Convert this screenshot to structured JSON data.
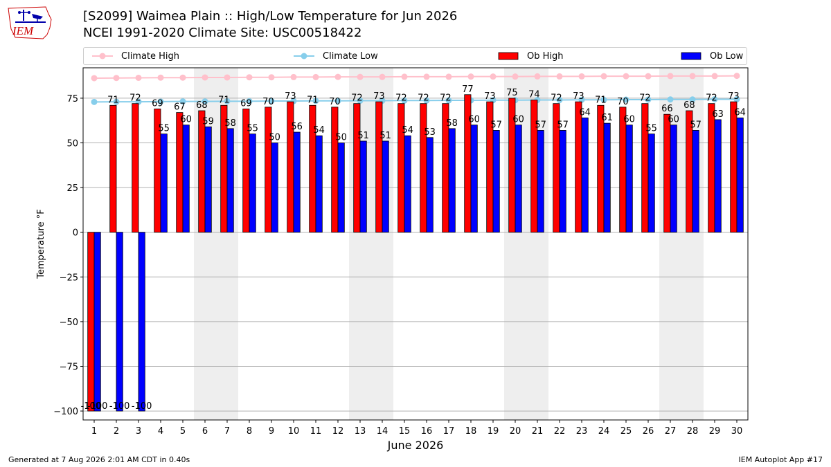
{
  "header": {
    "title_line1": "[S2099] Waimea Plain :: High/Low Temperature for Jun 2026",
    "title_line2": "NCEI 1991-2020 Climate Site: USC00518422",
    "logo_text": "IEM"
  },
  "footer": {
    "left": "Generated at 7 Aug 2026 2:01 AM CDT in 0.40s",
    "right": "IEM Autoplot App #17"
  },
  "colors": {
    "ob_high": "#ff0000",
    "ob_low": "#0000ff",
    "climate_high": "#ffc0cb",
    "climate_low": "#87ceeb",
    "weekend_shade": "#eeeeee"
  },
  "chart_data": {
    "type": "bar",
    "title": "[S2099] Waimea Plain :: High/Low Temperature for Jun 2026",
    "subtitle": "NCEI 1991-2020 Climate Site: USC00518422",
    "xlabel": "June 2026",
    "ylabel": "Temperature °F",
    "ylim": [
      -105,
      92
    ],
    "yticks": [
      -100,
      -75,
      -50,
      -25,
      0,
      25,
      50,
      75
    ],
    "ytick_labels": [
      "−100",
      "−75",
      "−50",
      "−25",
      "0",
      "25",
      "50",
      "75"
    ],
    "grid": "horizontal",
    "legend_position": "top",
    "categories": [
      "1",
      "2",
      "3",
      "4",
      "5",
      "6",
      "7",
      "8",
      "9",
      "10",
      "11",
      "12",
      "13",
      "14",
      "15",
      "16",
      "17",
      "18",
      "19",
      "20",
      "21",
      "22",
      "23",
      "24",
      "25",
      "26",
      "27",
      "28",
      "29",
      "30"
    ],
    "shaded_days": [
      "6",
      "7",
      "13",
      "14",
      "20",
      "21",
      "27",
      "28"
    ],
    "series": [
      {
        "name": "Ob High",
        "kind": "bar",
        "values": [
          -100,
          71,
          72,
          69,
          67,
          68,
          71,
          69,
          70,
          73,
          71,
          70,
          72,
          73,
          72,
          72,
          72,
          77,
          73,
          75,
          74,
          72,
          73,
          71,
          70,
          72,
          66,
          68,
          72,
          73
        ],
        "labels": [
          "-100",
          "71",
          "72",
          "69",
          "67",
          "68",
          "71",
          "69",
          "70",
          "73",
          "71",
          "70",
          "72",
          "73",
          "72",
          "72",
          "72",
          "77",
          "73",
          "75",
          "74",
          "72",
          "73",
          "71",
          "70",
          "72",
          "66",
          "68",
          "72",
          "73"
        ]
      },
      {
        "name": "Ob Low",
        "kind": "bar",
        "values": [
          -100,
          -100,
          -100,
          55,
          60,
          59,
          58,
          55,
          50,
          56,
          54,
          50,
          51,
          51,
          54,
          53,
          58,
          60,
          57,
          60,
          57,
          57,
          64,
          61,
          60,
          55,
          60,
          57,
          63,
          64
        ],
        "labels": [
          "-100",
          "-100",
          "-100",
          "55",
          "60",
          "59",
          "58",
          "55",
          "50",
          "56",
          "54",
          "50",
          "51",
          "51",
          "54",
          "53",
          "58",
          "60",
          "57",
          "60",
          "57",
          "57",
          "64",
          "61",
          "60",
          "55",
          "60",
          "57",
          "63",
          "64"
        ]
      },
      {
        "name": "Climate High",
        "kind": "line",
        "values": [
          86.2,
          86.3,
          86.4,
          86.5,
          86.5,
          86.6,
          86.6,
          86.7,
          86.7,
          86.8,
          86.8,
          86.9,
          86.9,
          86.9,
          87.0,
          87.0,
          87.0,
          87.1,
          87.1,
          87.1,
          87.2,
          87.2,
          87.2,
          87.3,
          87.3,
          87.3,
          87.4,
          87.4,
          87.4,
          87.5
        ]
      },
      {
        "name": "Climate Low",
        "kind": "line",
        "values": [
          72.9,
          73.0,
          73.0,
          73.1,
          73.2,
          73.2,
          73.3,
          73.3,
          73.4,
          73.4,
          73.5,
          73.5,
          73.6,
          73.6,
          73.7,
          73.7,
          73.8,
          73.8,
          73.9,
          73.9,
          74.0,
          74.0,
          74.1,
          74.1,
          74.2,
          74.2,
          74.3,
          74.3,
          74.4,
          74.4
        ]
      }
    ]
  }
}
